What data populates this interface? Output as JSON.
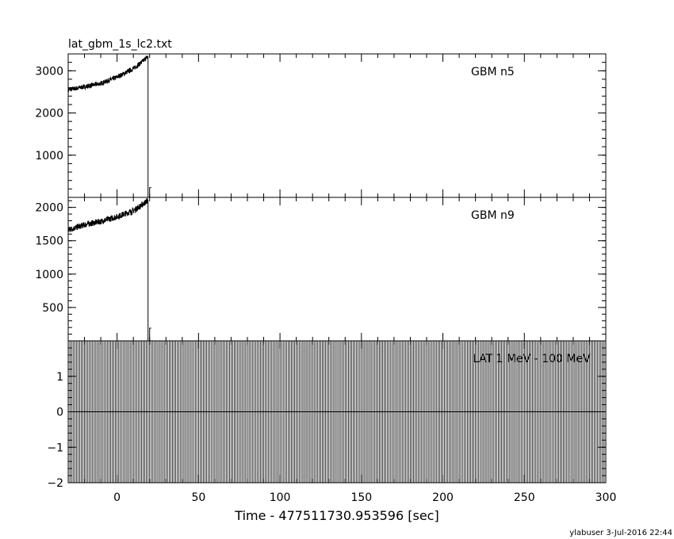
{
  "title": "lat_gbm_1s_lc2.txt",
  "footer": "ylabuser  3-Jul-2016 22:44",
  "chart_data": [
    {
      "type": "line",
      "label": "GBM n5",
      "xlim": [
        -30,
        300
      ],
      "ylim": [
        0,
        3400
      ],
      "yticks": [
        1000,
        2000,
        3000
      ],
      "series": [
        {
          "segments": [
            {
              "x": [
                -30,
                -20,
                -10,
                0,
                10,
                15,
                19
              ],
              "y": [
                2550,
                2620,
                2700,
                2850,
                3050,
                3200,
                3340
              ]
            },
            {
              "x": [
                19,
                19
              ],
              "y": [
                3340,
                0
              ]
            },
            {
              "x": [
                19,
                20,
                20,
                21
              ],
              "y": [
                0,
                0,
                230,
                230
              ]
            }
          ],
          "noise": 55
        }
      ]
    },
    {
      "type": "line",
      "label": "GBM n9",
      "xlim": [
        -30,
        300
      ],
      "ylim": [
        0,
        2150
      ],
      "yticks": [
        500,
        1000,
        1500,
        2000
      ],
      "series": [
        {
          "segments": [
            {
              "x": [
                -30,
                -20,
                -10,
                0,
                10,
                15,
                19
              ],
              "y": [
                1660,
                1740,
                1790,
                1860,
                1950,
                2030,
                2110
              ]
            },
            {
              "x": [
                19,
                19
              ],
              "y": [
                2110,
                0
              ]
            },
            {
              "x": [
                19,
                20,
                20,
                21
              ],
              "y": [
                0,
                0,
                190,
                190
              ]
            }
          ],
          "noise": 45
        }
      ]
    },
    {
      "type": "line",
      "label": "LAT 1 MeV - 100 MeV",
      "xlim": [
        -30,
        300
      ],
      "ylim": [
        -2,
        2
      ],
      "yticks": [
        -2,
        -1,
        0,
        1
      ],
      "xticks": [
        0,
        50,
        100,
        150,
        200,
        250,
        300
      ],
      "xlabel": "Time - 477511730.953596 [sec]",
      "series": [
        {
          "x_start": -30,
          "x_end": 300,
          "step": 1,
          "value": 0,
          "spike_range": [
            -2,
            2
          ]
        }
      ]
    }
  ]
}
